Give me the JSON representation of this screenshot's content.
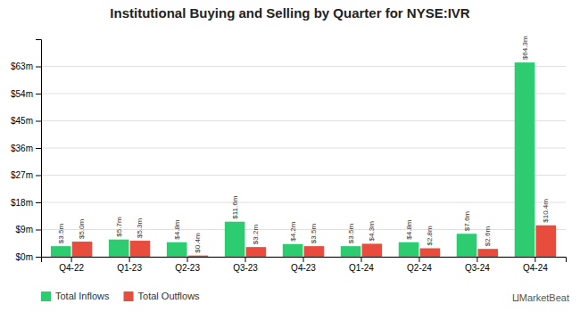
{
  "chart_data": {
    "type": "bar",
    "title": "Institutional Buying and Selling by Quarter for NYSE:IVR",
    "categories": [
      "Q4-22",
      "Q1-23",
      "Q2-23",
      "Q3-23",
      "Q4-23",
      "Q1-24",
      "Q2-24",
      "Q3-24",
      "Q4-24"
    ],
    "series": [
      {
        "name": "Total Inflows",
        "color": "#2ecc71",
        "values": [
          3.5,
          5.7,
          4.8,
          11.6,
          4.2,
          3.5,
          4.8,
          7.6,
          64.3
        ],
        "value_labels": [
          "$3.5m",
          "$5.7m",
          "$4.8m",
          "$11.6m",
          "$4.2m",
          "$3.5m",
          "$4.8m",
          "$7.6m",
          "$64.3m"
        ]
      },
      {
        "name": "Total Outflows",
        "color": "#e74c3c",
        "values": [
          5.0,
          5.3,
          0.4,
          3.2,
          3.5,
          4.3,
          2.8,
          2.6,
          10.4
        ],
        "value_labels": [
          "$5.0m",
          "$5.3m",
          "$0.4m",
          "$3.2m",
          "$3.5m",
          "$4.3m",
          "$2.8m",
          "$2.6m",
          "$10.4m"
        ]
      }
    ],
    "ylim": [
      0,
      72
    ],
    "yticks": [
      {
        "value": 0,
        "label": "$0m"
      },
      {
        "value": 9,
        "label": "$9m"
      },
      {
        "value": 18,
        "label": "$18m"
      },
      {
        "value": 27,
        "label": "$27m"
      },
      {
        "value": 36,
        "label": "$36m"
      },
      {
        "value": 45,
        "label": "$45m"
      },
      {
        "value": 54,
        "label": "$54m"
      },
      {
        "value": 63,
        "label": "$63m"
      }
    ],
    "grid": true,
    "legend": "bottom-left",
    "data_labels": true,
    "annotations": [
      "⨿​MarketBeat"
    ]
  }
}
